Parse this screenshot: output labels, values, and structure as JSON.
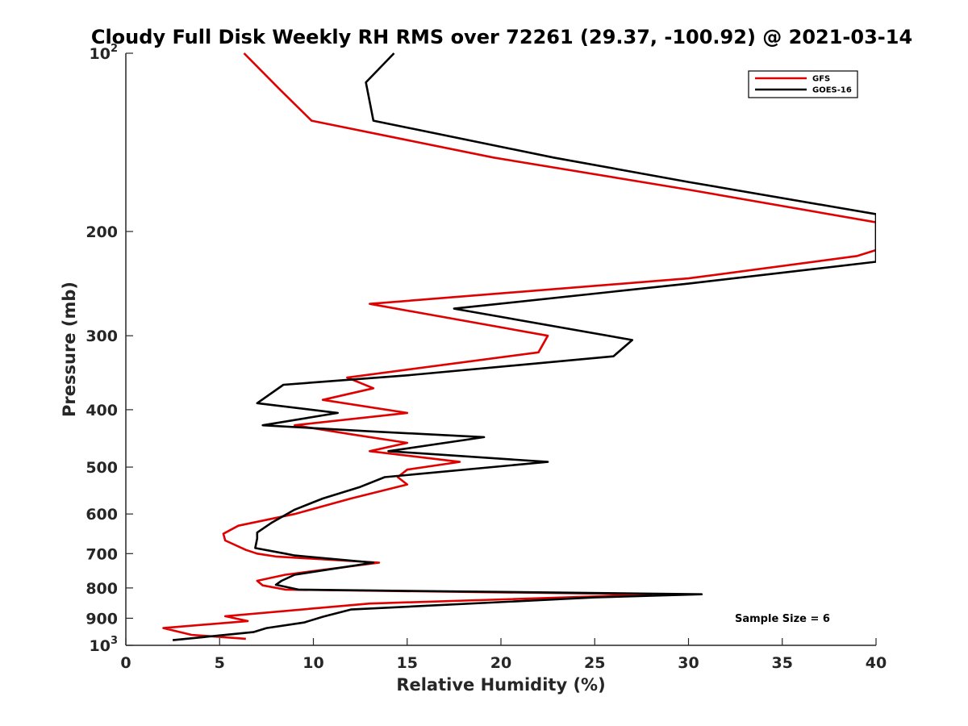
{
  "chart_data": {
    "type": "line",
    "title": "Cloudy Full Disk Weekly RH RMS over 72261 (29.37, -100.92) @ 2021-03-14",
    "xlabel": "Relative Humidity (%)",
    "ylabel": "Pressure (mb)",
    "xlim": [
      0,
      40
    ],
    "ylim": [
      100,
      1000
    ],
    "yscale": "log",
    "y_reversed": true,
    "grid": false,
    "x_ticks": [
      0,
      5,
      10,
      15,
      20,
      25,
      30,
      35,
      40
    ],
    "y_ticks": [
      {
        "value": 100,
        "base": "10",
        "exp": "2"
      },
      {
        "value": 200,
        "label": "200"
      },
      {
        "value": 300,
        "label": "300"
      },
      {
        "value": 400,
        "label": "400"
      },
      {
        "value": 500,
        "label": "500"
      },
      {
        "value": 600,
        "label": "600"
      },
      {
        "value": 700,
        "label": "700"
      },
      {
        "value": 800,
        "label": "800"
      },
      {
        "value": 900,
        "label": "900"
      },
      {
        "value": 1000,
        "base": "10",
        "exp": "3"
      }
    ],
    "legend_position": "top-right",
    "annotation": "Sample Size = 6",
    "series": [
      {
        "name": "GFS",
        "color": "#e00000",
        "points": [
          [
            6.3,
            100
          ],
          [
            8.2,
            115
          ],
          [
            9.9,
            130
          ],
          [
            19.6,
            150
          ],
          [
            30.0,
            170
          ],
          [
            40.0,
            193
          ],
          [
            40.0,
            215
          ],
          [
            39.0,
            220
          ],
          [
            30.0,
            240
          ],
          [
            13.0,
            265
          ],
          [
            22.5,
            300
          ],
          [
            22.0,
            320
          ],
          [
            11.8,
            353
          ],
          [
            13.2,
            368
          ],
          [
            10.5,
            385
          ],
          [
            15.0,
            405
          ],
          [
            9.0,
            425
          ],
          [
            12.0,
            440
          ],
          [
            15.0,
            455
          ],
          [
            13.0,
            470
          ],
          [
            17.8,
            490
          ],
          [
            15.0,
            505
          ],
          [
            14.5,
            520
          ],
          [
            15.0,
            535
          ],
          [
            12.0,
            565
          ],
          [
            9.0,
            600
          ],
          [
            6.0,
            628
          ],
          [
            5.2,
            648
          ],
          [
            5.3,
            665
          ],
          [
            6.4,
            690
          ],
          [
            7.0,
            700
          ],
          [
            8.0,
            708
          ],
          [
            13.5,
            725
          ],
          [
            8.5,
            760
          ],
          [
            7.0,
            778
          ],
          [
            7.3,
            792
          ],
          [
            8.5,
            805
          ],
          [
            28.0,
            820
          ],
          [
            26.0,
            825
          ],
          [
            13.0,
            850
          ],
          [
            5.3,
            893
          ],
          [
            6.5,
            910
          ],
          [
            2.0,
            935
          ],
          [
            3.5,
            960
          ],
          [
            6.4,
            975
          ]
        ]
      },
      {
        "name": "GOES-16",
        "color": "#000000",
        "points": [
          [
            14.3,
            100
          ],
          [
            12.8,
            112
          ],
          [
            13.2,
            130
          ],
          [
            22.8,
            150
          ],
          [
            30.0,
            165
          ],
          [
            40.0,
            187
          ],
          [
            40.0,
            225
          ],
          [
            30.0,
            245
          ],
          [
            17.5,
            270
          ],
          [
            27.0,
            305
          ],
          [
            26.0,
            325
          ],
          [
            15.0,
            350
          ],
          [
            8.4,
            363
          ],
          [
            7.0,
            390
          ],
          [
            11.3,
            405
          ],
          [
            7.3,
            425
          ],
          [
            13.0,
            435
          ],
          [
            19.1,
            445
          ],
          [
            14.0,
            470
          ],
          [
            22.5,
            490
          ],
          [
            13.8,
            520
          ],
          [
            12.5,
            540
          ],
          [
            10.5,
            565
          ],
          [
            9.0,
            590
          ],
          [
            7.8,
            620
          ],
          [
            7.0,
            645
          ],
          [
            7.0,
            660
          ],
          [
            6.9,
            685
          ],
          [
            8.5,
            700
          ],
          [
            9.0,
            705
          ],
          [
            13.2,
            725
          ],
          [
            9.0,
            760
          ],
          [
            8.3,
            778
          ],
          [
            8.0,
            790
          ],
          [
            9.2,
            805
          ],
          [
            30.7,
            820
          ],
          [
            25.0,
            830
          ],
          [
            12.0,
            870
          ],
          [
            10.5,
            895
          ],
          [
            9.5,
            915
          ],
          [
            7.5,
            935
          ],
          [
            6.8,
            950
          ],
          [
            2.5,
            980
          ]
        ]
      }
    ]
  }
}
